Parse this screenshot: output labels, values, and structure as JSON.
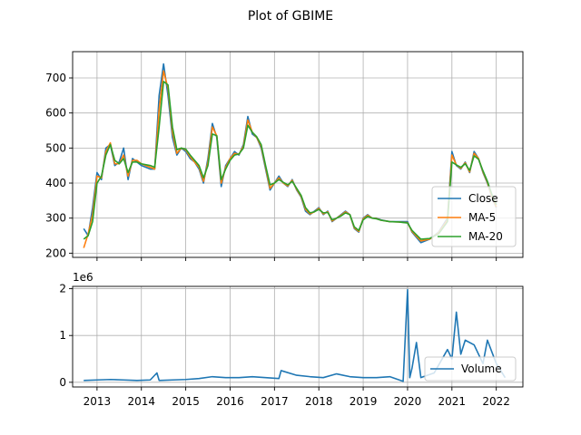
{
  "figure": {
    "title": "Plot of GBIME"
  },
  "chart_data": [
    {
      "type": "line",
      "title": "",
      "xlabel": "",
      "ylabel": "",
      "xlim": [
        2012.45,
        2022.6
      ],
      "ylim": [
        188,
        775
      ],
      "xticks": [
        2013,
        2014,
        2015,
        2016,
        2017,
        2018,
        2019,
        2020,
        2021,
        2022
      ],
      "xtick_labels": [
        "2013",
        "2014",
        "2015",
        "2016",
        "2017",
        "2018",
        "2019",
        "2020",
        "2021",
        "2022"
      ],
      "yticks": [
        200,
        300,
        400,
        500,
        600,
        700
      ],
      "ytick_labels": [
        "200",
        "300",
        "400",
        "500",
        "600",
        "700"
      ],
      "grid": true,
      "legend_position": "lower-right",
      "x": [
        2012.7,
        2012.8,
        2012.9,
        2013.0,
        2013.1,
        2013.2,
        2013.3,
        2013.4,
        2013.5,
        2013.6,
        2013.7,
        2013.8,
        2013.9,
        2014.0,
        2014.2,
        2014.3,
        2014.4,
        2014.5,
        2014.6,
        2014.7,
        2014.8,
        2014.9,
        2015.0,
        2015.1,
        2015.2,
        2015.3,
        2015.4,
        2015.5,
        2015.6,
        2015.7,
        2015.8,
        2015.9,
        2016.0,
        2016.1,
        2016.2,
        2016.3,
        2016.4,
        2016.5,
        2016.6,
        2016.7,
        2016.8,
        2016.9,
        2017.0,
        2017.1,
        2017.2,
        2017.3,
        2017.4,
        2017.5,
        2017.6,
        2017.7,
        2017.8,
        2017.9,
        2018.0,
        2018.1,
        2018.2,
        2018.3,
        2018.4,
        2018.5,
        2018.6,
        2018.7,
        2018.8,
        2018.9,
        2019.0,
        2019.1,
        2019.2,
        2019.3,
        2019.4,
        2019.6,
        2019.8,
        2020.0,
        2020.1,
        2020.3,
        2020.5,
        2020.7,
        2020.9,
        2021.0,
        2021.1,
        2021.2,
        2021.3,
        2021.4,
        2021.5,
        2021.6,
        2021.7,
        2021.8,
        2021.9,
        2022.0
      ],
      "series": [
        {
          "name": "Close",
          "color": "#1f77b4",
          "values": [
            270,
            250,
            330,
            430,
            410,
            500,
            510,
            450,
            460,
            500,
            410,
            470,
            460,
            450,
            440,
            440,
            650,
            740,
            650,
            530,
            480,
            500,
            490,
            470,
            460,
            440,
            400,
            470,
            570,
            530,
            390,
            450,
            470,
            490,
            480,
            510,
            590,
            540,
            530,
            500,
            440,
            380,
            400,
            420,
            400,
            390,
            410,
            380,
            360,
            320,
            310,
            320,
            330,
            310,
            320,
            290,
            300,
            310,
            320,
            310,
            270,
            260,
            300,
            310,
            300,
            300,
            295,
            290,
            290,
            290,
            260,
            230,
            240,
            260,
            300,
            490,
            450,
            440,
            460,
            430,
            490,
            470,
            430,
            400,
            360,
            330
          ]
        },
        {
          "name": "MA-5",
          "color": "#ff7f0e",
          "values": [
            215,
            255,
            310,
            420,
            415,
            490,
            515,
            455,
            455,
            480,
            420,
            465,
            465,
            455,
            445,
            440,
            610,
            720,
            670,
            545,
            485,
            500,
            495,
            475,
            460,
            445,
            405,
            460,
            560,
            535,
            400,
            445,
            470,
            485,
            482,
            505,
            580,
            545,
            530,
            505,
            445,
            385,
            400,
            415,
            400,
            392,
            408,
            382,
            362,
            325,
            312,
            318,
            328,
            312,
            318,
            292,
            300,
            308,
            318,
            310,
            272,
            262,
            298,
            308,
            300,
            299,
            294,
            290,
            289,
            287,
            262,
            235,
            240,
            258,
            295,
            480,
            452,
            442,
            458,
            432,
            485,
            470,
            432,
            402,
            362,
            332
          ]
        },
        {
          "name": "MA-20",
          "color": "#2ca02c",
          "values": [
            240,
            250,
            290,
            400,
            420,
            480,
            510,
            465,
            455,
            470,
            430,
            460,
            460,
            455,
            450,
            445,
            560,
            690,
            680,
            560,
            495,
            500,
            497,
            480,
            465,
            450,
            415,
            450,
            540,
            535,
            410,
            440,
            465,
            480,
            483,
            500,
            565,
            545,
            532,
            510,
            450,
            395,
            400,
            410,
            402,
            395,
            405,
            385,
            365,
            330,
            315,
            318,
            325,
            315,
            316,
            295,
            300,
            306,
            315,
            310,
            275,
            265,
            295,
            305,
            300,
            298,
            294,
            290,
            289,
            286,
            265,
            240,
            242,
            255,
            290,
            460,
            452,
            445,
            455,
            436,
            478,
            468,
            435,
            405,
            368,
            338
          ]
        }
      ]
    },
    {
      "type": "line",
      "title": "",
      "xlabel": "",
      "ylabel": "",
      "offset_label": "1e6",
      "xlim": [
        2012.45,
        2022.6
      ],
      "ylim": [
        -0.1,
        2.05
      ],
      "xticks": [
        2013,
        2014,
        2015,
        2016,
        2017,
        2018,
        2019,
        2020,
        2021,
        2022
      ],
      "xtick_labels": [
        "2013",
        "2014",
        "2015",
        "2016",
        "2017",
        "2018",
        "2019",
        "2020",
        "2021",
        "2022"
      ],
      "yticks": [
        0,
        1,
        2
      ],
      "ytick_labels": [
        "0",
        "1",
        "2"
      ],
      "grid": true,
      "legend_position": "lower-right",
      "x": [
        2012.7,
        2013.0,
        2013.3,
        2013.6,
        2013.9,
        2014.2,
        2014.35,
        2014.4,
        2014.7,
        2015.0,
        2015.3,
        2015.6,
        2015.9,
        2016.2,
        2016.5,
        2016.8,
        2017.1,
        2017.15,
        2017.5,
        2017.8,
        2018.1,
        2018.4,
        2018.7,
        2019.0,
        2019.3,
        2019.6,
        2019.9,
        2020.0,
        2020.05,
        2020.1,
        2020.2,
        2020.3,
        2020.6,
        2020.9,
        2021.0,
        2021.1,
        2021.2,
        2021.3,
        2021.5,
        2021.7,
        2021.8,
        2022.0,
        2022.2
      ],
      "series": [
        {
          "name": "Volume",
          "color": "#1f77b4",
          "values": [
            0.04,
            0.05,
            0.06,
            0.05,
            0.04,
            0.05,
            0.2,
            0.04,
            0.05,
            0.06,
            0.08,
            0.12,
            0.1,
            0.1,
            0.12,
            0.1,
            0.08,
            0.25,
            0.15,
            0.12,
            0.1,
            0.18,
            0.12,
            0.1,
            0.1,
            0.12,
            0.02,
            1.98,
            0.1,
            0.3,
            0.85,
            0.1,
            0.2,
            0.7,
            0.5,
            1.5,
            0.6,
            0.9,
            0.8,
            0.4,
            0.9,
            0.4,
            0.1
          ]
        }
      ]
    }
  ]
}
